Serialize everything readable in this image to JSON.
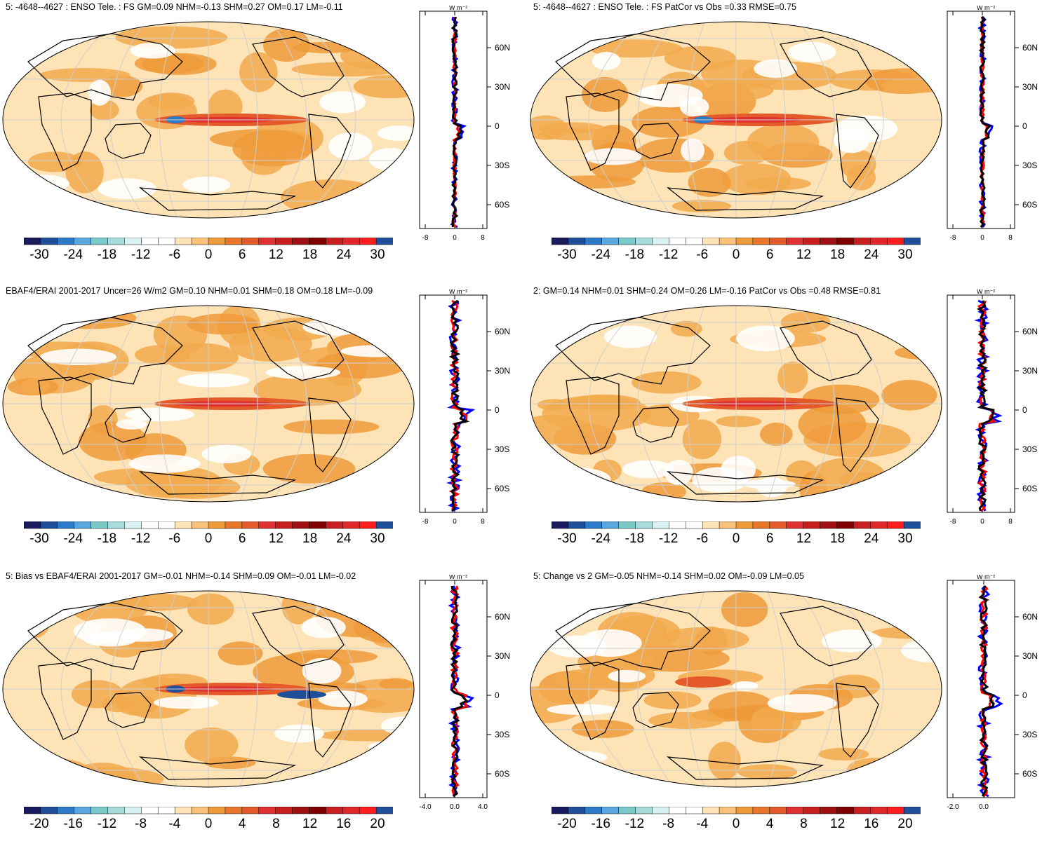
{
  "colors": {
    "land_outline": "#000000",
    "zonal_obs": "#0000ff",
    "zonal_model": "#ff0000",
    "zonal_black": "#000000",
    "palette": [
      "#1a1a5e",
      "#1f4f99",
      "#2b7bc9",
      "#5aa6e0",
      "#7cc7c8",
      "#a8dcdc",
      "#d8f2f2",
      "#ffffff",
      "#ffffff",
      "#fde3b5",
      "#f8c27a",
      "#ef9a3a",
      "#e8772a",
      "#e45a2a",
      "#e03030",
      "#c81e1e",
      "#a01010",
      "#800000",
      "#c82020",
      "#e02828",
      "#ff1e1e",
      "#1f4f99"
    ]
  },
  "panels": [
    {
      "title": "5: -4648--4627 : ENSO Tele. : FS GM=0.09 NHM=-0.13 SHM=0.27 OM=0.17 LM=-0.11",
      "cbar_labels": [
        "-30",
        "-24",
        "-18",
        "-12",
        "-6",
        "0",
        "6",
        "12",
        "18",
        "24",
        "30"
      ],
      "zonal_unit": "W m⁻²",
      "zonal_xticks": [
        "-8",
        "0",
        "8"
      ],
      "lat_labels": [
        "60N",
        "30N",
        "0",
        "30S",
        "60S"
      ]
    },
    {
      "title": "5: -4648--4627 : ENSO Tele. : FS PatCor vs Obs =0.33 RMSE=0.75",
      "cbar_labels": [
        "-30",
        "-24",
        "-18",
        "-12",
        "-6",
        "0",
        "6",
        "12",
        "18",
        "24",
        "30"
      ],
      "zonal_unit": "W m⁻²",
      "zonal_xticks": [
        "-8",
        "0",
        "8"
      ],
      "lat_labels": [
        "60N",
        "30N",
        "0",
        "30S",
        "60S"
      ]
    },
    {
      "title": "EBAF4/ERAI 2001-2017 Uncer=26 W/m2 GM=0.10 NHM=0.01 SHM=0.18 OM=0.18 LM=-0.09",
      "cbar_labels": [
        "-30",
        "-24",
        "-18",
        "-12",
        "-6",
        "0",
        "6",
        "12",
        "18",
        "24",
        "30"
      ],
      "zonal_unit": "W m⁻²",
      "zonal_xticks": [
        "-8",
        "0",
        "8"
      ],
      "lat_labels": [
        "60N",
        "30N",
        "0",
        "30S",
        "60S"
      ]
    },
    {
      "title": "2: GM=0.14 NHM=0.01 SHM=0.24 OM=0.26 LM=-0.16 PatCor vs Obs =0.48 RMSE=0.81",
      "cbar_labels": [
        "-30",
        "-24",
        "-18",
        "-12",
        "-6",
        "0",
        "6",
        "12",
        "18",
        "24",
        "30"
      ],
      "zonal_unit": "W m⁻²",
      "zonal_xticks": [
        "-8",
        "0",
        "8"
      ],
      "lat_labels": [
        "60N",
        "30N",
        "0",
        "30S",
        "60S"
      ]
    },
    {
      "title": "5: Bias vs EBAF4/ERAI 2001-2017 GM=-0.01 NHM=-0.14 SHM=0.09 OM=-0.01 LM=-0.02",
      "cbar_labels": [
        "-20",
        "-16",
        "-12",
        "-8",
        "-4",
        "0",
        "4",
        "8",
        "12",
        "16",
        "20"
      ],
      "zonal_unit": "W m⁻²",
      "zonal_xticks": [
        "-4.0",
        "0.0",
        "4.0"
      ],
      "lat_labels": [
        "60N",
        "30N",
        "0",
        "30S",
        "60S"
      ]
    },
    {
      "title": "5: Change vs 2 GM=-0.05 NHM=-0.14 SHM=0.02 OM=-0.09 LM=0.05",
      "cbar_labels": [
        "-20",
        "-16",
        "-12",
        "-8",
        "-4",
        "0",
        "4",
        "8",
        "12",
        "16",
        "20"
      ],
      "zonal_unit": "W m⁻²",
      "zonal_xticks": [
        "-2.0",
        "0.0"
      ],
      "lat_labels": [
        "60N",
        "30N",
        "0",
        "30S",
        "60S"
      ]
    }
  ]
}
